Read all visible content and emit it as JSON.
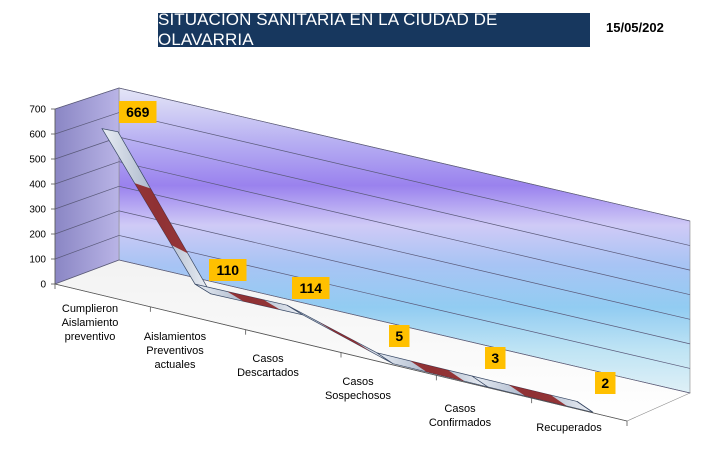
{
  "header": {
    "title": "SITUACIÓN SANITARIA EN LA CIUDAD DE OLAVARRIA",
    "date": "15/05/202"
  },
  "chart_data": {
    "type": "line",
    "style": "3d-ribbon",
    "categories": [
      [
        "Cumplieron",
        "Aislamiento",
        "preventivo"
      ],
      [
        "Aislamientos",
        "Preventivos",
        "actuales"
      ],
      [
        "Casos",
        "Descartados"
      ],
      [
        "Casos",
        "Sospechosos"
      ],
      [
        "Casos",
        "Confirmados"
      ],
      [
        "Recuperados"
      ]
    ],
    "series": [
      {
        "values": [
          669,
          110,
          114,
          5,
          3,
          2
        ]
      }
    ],
    "ylim": [
      0,
      700
    ],
    "yticks": [
      0,
      100,
      200,
      300,
      400,
      500,
      600,
      700
    ],
    "grid": true,
    "data_labels": true,
    "colors": {
      "label_bg": "#ffc000",
      "ribbon_top": "#5c6f99",
      "ribbon_light": "#c9d3e3",
      "ribbon_dark": "#8b1a1a",
      "title_bg": "#17375e"
    }
  }
}
